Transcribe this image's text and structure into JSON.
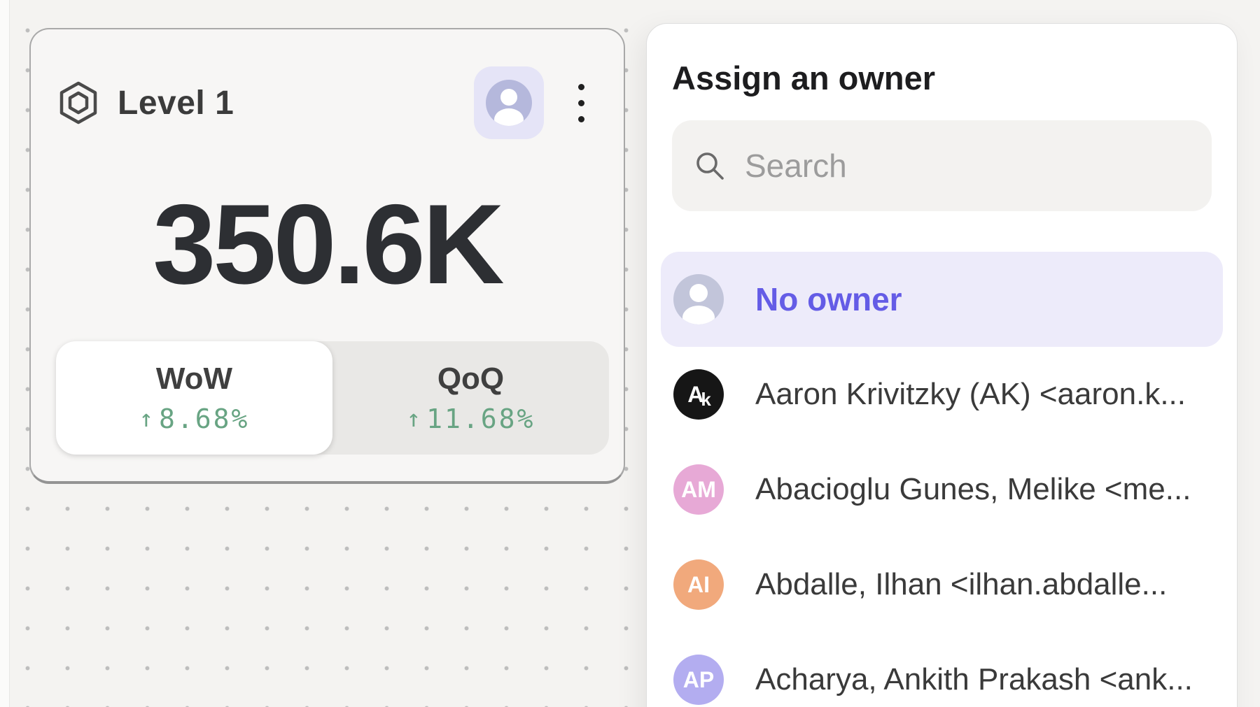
{
  "card": {
    "title": "Level 1",
    "value": "350.6K",
    "arrow_up": "↑",
    "tabs": [
      {
        "label": "WoW",
        "delta": "8.68%"
      },
      {
        "label": "QoQ",
        "delta": "11.68%"
      }
    ]
  },
  "panel": {
    "title": "Assign an owner",
    "search_placeholder": "Search",
    "no_owner_label": "No owner",
    "people": [
      {
        "initials": "Ak",
        "name": "Aaron Krivitzky (AK) <aaron.k...",
        "avatar_color": "#161616",
        "logo": true
      },
      {
        "initials": "AM",
        "name": "Abacioglu Gunes, Melike <me...",
        "avatar_color": "#e7a9d6",
        "logo": false
      },
      {
        "initials": "AI",
        "name": "Abdalle, Ilhan <ilhan.abdalle...",
        "avatar_color": "#f1a97c",
        "logo": false
      },
      {
        "initials": "AP",
        "name": "Acharya, Ankith Prakash <ank...",
        "avatar_color": "#b3adf0",
        "logo": false
      }
    ]
  },
  "colors": {
    "accent_purple": "#645ce6",
    "selected_row_bg": "#edebfa",
    "delta_green": "#68a483",
    "avatar_button_bg": "#e5e4f7",
    "person_glyph_bg": "#b5b8dc",
    "no_owner_avatar_bg": "#c2c5da"
  }
}
